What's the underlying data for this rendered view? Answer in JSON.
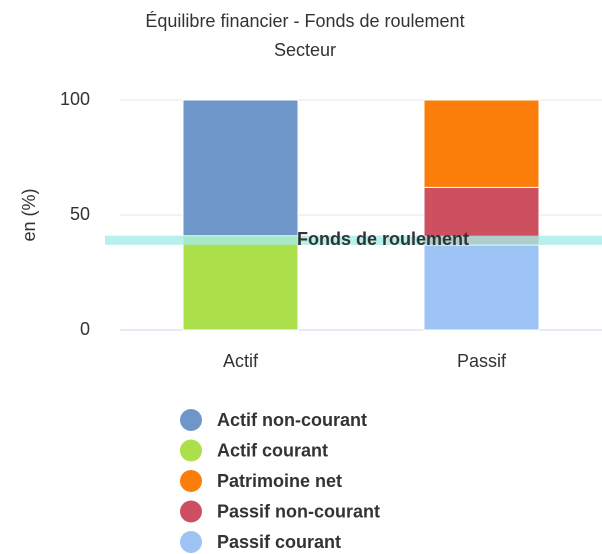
{
  "chart_data": {
    "type": "stacked_bar",
    "title": "Équilibre financier - Fonds de roulement",
    "subtitle": "Secteur",
    "y_label": "en (%)",
    "categories": [
      "Actif",
      "Passif"
    ],
    "series": [
      {
        "name": "Actif non-courant",
        "color": "#6f96c8",
        "values": [
          59,
          null
        ]
      },
      {
        "name": "Actif courant",
        "color": "#abe04a",
        "values": [
          41,
          null
        ]
      },
      {
        "name": "Patrimoine net",
        "color": "#fb7d0a",
        "values": [
          null,
          38
        ]
      },
      {
        "name": "Passif non-courant",
        "color": "#cc5060",
        "values": [
          null,
          25
        ]
      },
      {
        "name": "Passif courant",
        "color": "#9ec3f5",
        "values": [
          null,
          37
        ]
      }
    ],
    "plot_band": {
      "from": 37,
      "to": 41,
      "label": "Fonds de roulement",
      "color": "#a8ece6"
    },
    "ylim": [
      0,
      100
    ],
    "yticks": [
      0,
      50,
      100
    ],
    "grid": true
  }
}
